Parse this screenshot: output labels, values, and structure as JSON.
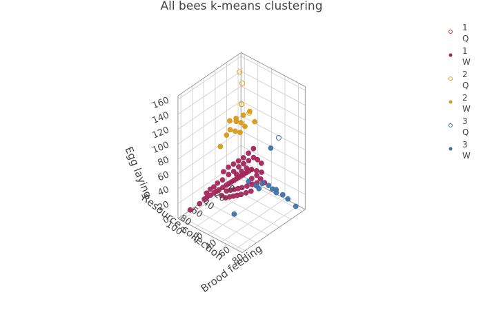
{
  "chart_data": {
    "type": "scatter3d",
    "title": "All bees k-means clustering",
    "axes": {
      "x": {
        "label": "Brood feeding",
        "ticks": [
          0,
          20,
          40,
          60,
          80
        ],
        "range": [
          -5,
          90
        ]
      },
      "y": {
        "label": "Resource collection",
        "ticks": [
          0,
          20,
          40,
          60,
          80,
          100
        ],
        "range": [
          -5,
          105
        ]
      },
      "z": {
        "label": "Egg laying",
        "ticks": [
          0,
          20,
          40,
          60,
          80,
          100,
          120,
          140,
          160
        ],
        "range": [
          0,
          165
        ]
      }
    },
    "grid": true,
    "legend_position": "right",
    "series": [
      {
        "name": "1 Q",
        "cluster": 1,
        "caste": "Q",
        "symbol": "circle-open",
        "color": "#c0392b",
        "points": []
      },
      {
        "name": "1 W",
        "cluster": 1,
        "caste": "W",
        "symbol": "circle",
        "color": "#a3285a",
        "points": [
          [
            2,
            92,
            8
          ],
          [
            4,
            78,
            10
          ],
          [
            6,
            72,
            14
          ],
          [
            8,
            70,
            16
          ],
          [
            10,
            66,
            18
          ],
          [
            12,
            62,
            20
          ],
          [
            14,
            60,
            22
          ],
          [
            16,
            58,
            24
          ],
          [
            18,
            54,
            26
          ],
          [
            20,
            50,
            28
          ],
          [
            22,
            48,
            30
          ],
          [
            24,
            46,
            32
          ],
          [
            26,
            44,
            34
          ],
          [
            28,
            42,
            36
          ],
          [
            30,
            40,
            38
          ],
          [
            32,
            38,
            40
          ],
          [
            34,
            36,
            42
          ],
          [
            36,
            34,
            44
          ],
          [
            38,
            32,
            46
          ],
          [
            40,
            30,
            48
          ],
          [
            12,
            56,
            30
          ],
          [
            16,
            52,
            34
          ],
          [
            20,
            46,
            40
          ],
          [
            24,
            42,
            44
          ],
          [
            28,
            38,
            50
          ],
          [
            32,
            34,
            54
          ],
          [
            36,
            30,
            58
          ],
          [
            40,
            26,
            62
          ],
          [
            44,
            24,
            60
          ],
          [
            48,
            22,
            56
          ],
          [
            22,
            52,
            22
          ],
          [
            26,
            50,
            24
          ],
          [
            30,
            48,
            26
          ],
          [
            34,
            46,
            28
          ],
          [
            38,
            44,
            30
          ],
          [
            42,
            40,
            32
          ],
          [
            46,
            36,
            34
          ],
          [
            50,
            32,
            36
          ],
          [
            18,
            44,
            48
          ],
          [
            22,
            40,
            52
          ],
          [
            26,
            36,
            56
          ],
          [
            30,
            32,
            60
          ],
          [
            34,
            28,
            66
          ],
          [
            38,
            24,
            72
          ],
          [
            14,
            48,
            42
          ],
          [
            10,
            60,
            26
          ],
          [
            8,
            64,
            24
          ],
          [
            6,
            68,
            20
          ],
          [
            44,
            34,
            40
          ],
          [
            48,
            30,
            44
          ],
          [
            52,
            28,
            40
          ],
          [
            56,
            26,
            36
          ],
          [
            30,
            44,
            44
          ],
          [
            34,
            40,
            48
          ],
          [
            38,
            36,
            52
          ],
          [
            42,
            32,
            50
          ],
          [
            46,
            28,
            48
          ],
          [
            50,
            24,
            46
          ],
          [
            20,
            58,
            18
          ],
          [
            24,
            56,
            16
          ],
          [
            28,
            54,
            18
          ],
          [
            32,
            52,
            20
          ],
          [
            36,
            50,
            22
          ],
          [
            40,
            48,
            24
          ],
          [
            44,
            44,
            26
          ],
          [
            48,
            40,
            28
          ]
        ]
      },
      {
        "name": "2 Q",
        "cluster": 2,
        "caste": "Q",
        "symbol": "circle-open",
        "color": "#e0a526",
        "points": [
          [
            4,
            8,
            150
          ],
          [
            18,
            20,
            148
          ],
          [
            10,
            12,
            112
          ],
          [
            20,
            10,
            104
          ],
          [
            14,
            16,
            116
          ]
        ]
      },
      {
        "name": "2 W",
        "cluster": 2,
        "caste": "W",
        "symbol": "circle",
        "color": "#d89a1a",
        "points": [
          [
            8,
            30,
            98
          ],
          [
            14,
            26,
            102
          ],
          [
            18,
            22,
            96
          ],
          [
            22,
            20,
            92
          ],
          [
            12,
            34,
            90
          ],
          [
            16,
            30,
            88
          ],
          [
            20,
            26,
            86
          ],
          [
            10,
            38,
            84
          ],
          [
            24,
            14,
            110
          ],
          [
            6,
            44,
            70
          ],
          [
            28,
            10,
            96
          ],
          [
            18,
            18,
            104
          ],
          [
            16,
            28,
            100
          ]
        ]
      },
      {
        "name": "3 Q",
        "cluster": 3,
        "caste": "Q",
        "symbol": "circle-open",
        "color": "#3f72a8",
        "points": [
          [
            55,
            0,
            82
          ]
        ]
      },
      {
        "name": "3 W",
        "cluster": 3,
        "caste": "W",
        "symbol": "circle",
        "color": "#3f72a8",
        "points": [
          [
            72,
            4,
            10
          ],
          [
            82,
            2,
            4
          ],
          [
            66,
            6,
            14
          ],
          [
            60,
            10,
            16
          ],
          [
            56,
            12,
            20
          ],
          [
            52,
            14,
            24
          ],
          [
            48,
            20,
            28
          ],
          [
            44,
            26,
            26
          ],
          [
            50,
            8,
            70
          ],
          [
            40,
            60,
            4
          ],
          [
            58,
            8,
            18
          ],
          [
            46,
            24,
            22
          ],
          [
            36,
            30,
            30
          ]
        ]
      }
    ]
  }
}
